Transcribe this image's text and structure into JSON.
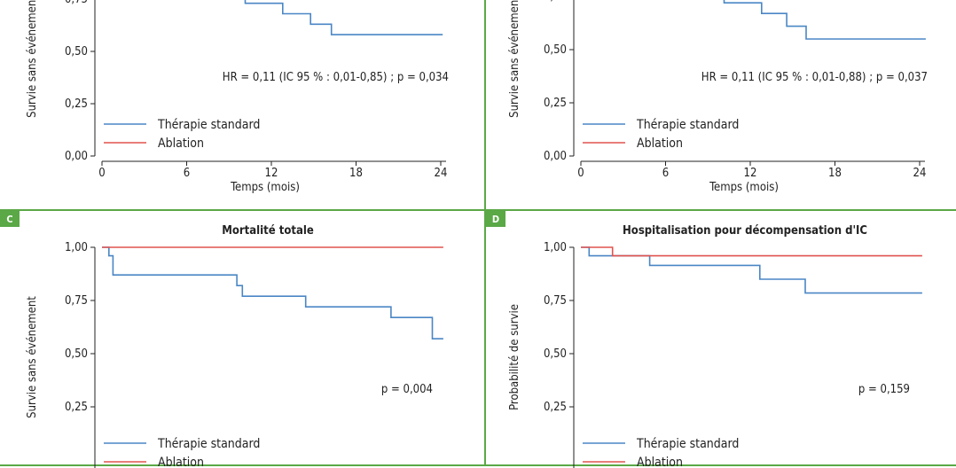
{
  "colors": {
    "standard": "#4a86c5",
    "ablation": "#e0534e",
    "frame": "#5aa846",
    "axis": "#222222"
  },
  "charts": [
    {
      "letter": "",
      "title": "",
      "ylabel": "Survie sans événement",
      "xlabel": "Temps (mois)",
      "stat": "HR = 0,11 (IC 95 % : 0,01-0,85) ; p = 0,034",
      "legend": [
        "Thérapie standard",
        "Ablation"
      ]
    },
    {
      "letter": "",
      "title": "",
      "ylabel": "Survie sans événement",
      "xlabel": "Temps (mois)",
      "stat": "HR = 0,11 (IC 95 % : 0,01-0,88) ; p = 0,037",
      "legend": [
        "Thérapie standard",
        "Ablation"
      ]
    },
    {
      "letter": "C",
      "title": "Mortalité totale",
      "ylabel": "Survie sans événement",
      "xlabel": "",
      "stat": "p = 0,004",
      "legend": [
        "Thérapie standard",
        "Ablation"
      ]
    },
    {
      "letter": "D",
      "title": "Hospitalisation pour décompensation d'IC",
      "ylabel": "Probabilité de survie",
      "xlabel": "",
      "stat": "p = 0,159",
      "legend": [
        "Thérapie standard",
        "Ablation"
      ]
    }
  ],
  "chart_data": [
    {
      "type": "line",
      "panel": "A",
      "xlabel": "Temps (mois)",
      "ylabel": "Survie sans événement",
      "x_ticks": [
        "0",
        "6",
        "12",
        "18",
        "24"
      ],
      "y_ticks": [
        "0,00",
        "0,25",
        "0,50",
        "0,75"
      ],
      "xlim": [
        0,
        25
      ],
      "ylim": [
        0,
        1
      ],
      "series": [
        {
          "name": "Thérapie standard",
          "step": [
            [
              10.3,
              0.8
            ],
            [
              10.3,
              0.73
            ],
            [
              13.0,
              0.73
            ],
            [
              13.0,
              0.68
            ],
            [
              15.0,
              0.68
            ],
            [
              15.0,
              0.63
            ],
            [
              16.5,
              0.63
            ],
            [
              16.5,
              0.58
            ],
            [
              24.5,
              0.58
            ]
          ]
        },
        {
          "name": "Ablation",
          "step": []
        }
      ]
    },
    {
      "type": "line",
      "panel": "B",
      "xlabel": "Temps (mois)",
      "ylabel": "Survie sans événement",
      "x_ticks": [
        "0",
        "6",
        "12",
        "18",
        "24"
      ],
      "y_ticks": [
        "0,00",
        "0,25",
        "0,50",
        "0,75"
      ],
      "xlim": [
        0,
        25
      ],
      "ylim": [
        0,
        1
      ],
      "series": [
        {
          "name": "Thérapie standard",
          "step": [
            [
              10.3,
              0.8
            ],
            [
              10.3,
              0.72
            ],
            [
              13.0,
              0.72
            ],
            [
              13.0,
              0.67
            ],
            [
              14.8,
              0.67
            ],
            [
              14.8,
              0.61
            ],
            [
              16.2,
              0.61
            ],
            [
              16.2,
              0.55
            ],
            [
              24.8,
              0.55
            ]
          ]
        },
        {
          "name": "Ablation",
          "step": []
        }
      ]
    },
    {
      "type": "line",
      "panel": "C",
      "title": "Mortalité totale",
      "ylabel": "Survie sans événement",
      "y_ticks": [
        "1,00",
        "0,75",
        "0,50",
        "0,25"
      ],
      "xlim": [
        0,
        25
      ],
      "ylim": [
        0,
        1
      ],
      "series": [
        {
          "name": "Thérapie standard",
          "step": [
            [
              0,
              1.0
            ],
            [
              0.5,
              1.0
            ],
            [
              0.5,
              0.96
            ],
            [
              0.8,
              0.96
            ],
            [
              0.8,
              0.87
            ],
            [
              9.8,
              0.87
            ],
            [
              9.8,
              0.82
            ],
            [
              10.2,
              0.82
            ],
            [
              10.2,
              0.77
            ],
            [
              14.8,
              0.77
            ],
            [
              14.8,
              0.72
            ],
            [
              21.0,
              0.72
            ],
            [
              21.0,
              0.67
            ],
            [
              24.0,
              0.67
            ],
            [
              24.0,
              0.57
            ],
            [
              24.8,
              0.57
            ]
          ]
        },
        {
          "name": "Ablation",
          "step": [
            [
              0,
              1.0
            ],
            [
              24.8,
              1.0
            ]
          ]
        }
      ]
    },
    {
      "type": "line",
      "panel": "D",
      "title": "Hospitalisation pour décompensation d'IC",
      "ylabel": "Probabilité de survie",
      "y_ticks": [
        "1,00",
        "0,75",
        "0,50",
        "0,25"
      ],
      "xlim": [
        0,
        25
      ],
      "ylim": [
        0,
        1
      ],
      "series": [
        {
          "name": "Thérapie standard",
          "step": [
            [
              0,
              1.0
            ],
            [
              0.6,
              1.0
            ],
            [
              0.6,
              0.96
            ],
            [
              5.0,
              0.96
            ],
            [
              5.0,
              0.915
            ],
            [
              13.0,
              0.915
            ],
            [
              13.0,
              0.85
            ],
            [
              16.3,
              0.85
            ],
            [
              16.3,
              0.785
            ],
            [
              24.8,
              0.785
            ]
          ]
        },
        {
          "name": "Ablation",
          "step": [
            [
              0,
              1.0
            ],
            [
              2.3,
              1.0
            ],
            [
              2.3,
              0.96
            ],
            [
              24.8,
              0.96
            ]
          ]
        }
      ]
    }
  ]
}
